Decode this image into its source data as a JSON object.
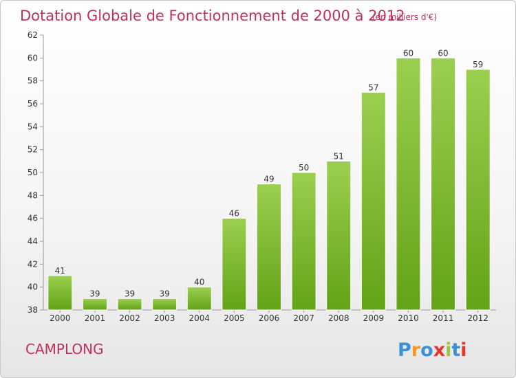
{
  "chart_data": {
    "type": "bar",
    "title": "Dotation Globale de Fonctionnement de 2000 à 2012",
    "subtitle": "(en milliers d'€)",
    "categories": [
      "2000",
      "2001",
      "2002",
      "2003",
      "2004",
      "2005",
      "2006",
      "2007",
      "2008",
      "2009",
      "2010",
      "2011",
      "2012"
    ],
    "values": [
      41,
      39,
      39,
      39,
      40,
      46,
      49,
      50,
      51,
      57,
      60,
      60,
      59
    ],
    "ylim": [
      38,
      62
    ],
    "yticks": [
      38,
      40,
      42,
      44,
      46,
      48,
      50,
      52,
      54,
      56,
      58,
      60,
      62
    ],
    "grid": false,
    "bar_color_top": "#9ccf4f",
    "bar_color_bottom": "#62a317"
  },
  "footer": {
    "commune": "CAMPLONG",
    "logo": "Proxiti"
  },
  "colors": {
    "title": "#c0305a",
    "logo_letters": [
      "#3b8fd6",
      "#f29a1f",
      "#3b8fd6",
      "#e2362d",
      "#9bc53d",
      "#3b8fd6",
      "#e2362d"
    ]
  }
}
